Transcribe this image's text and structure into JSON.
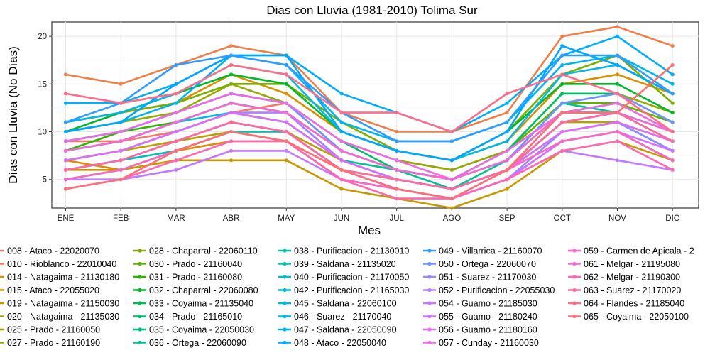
{
  "chart_data": {
    "type": "line",
    "title": "Dias con Lluvia (1981-2010)  Tolima Sur",
    "xlabel": "Mes",
    "ylabel": "Días con Lluvia (No Días)",
    "categories": [
      "ENE",
      "FEB",
      "MAR",
      "ABR",
      "MAY",
      "JUN",
      "JUL",
      "AGO",
      "SEP",
      "OCT",
      "NOV",
      "DIC"
    ],
    "y_ticks": [
      5,
      10,
      15,
      20
    ],
    "ylim": [
      2,
      21.5
    ],
    "grid": true,
    "legend_position": "bottom",
    "series": [
      {
        "name": "008 - Ataco - 22020070",
        "color": "#F8766D",
        "values": [
          9,
          9,
          10,
          12,
          13,
          9,
          7,
          6,
          8,
          12,
          13,
          10
        ]
      },
      {
        "name": "010 - Rioblanco - 22010040",
        "color": "#EF7F49",
        "values": [
          16,
          15,
          17,
          19,
          18,
          12,
          10,
          10,
          12,
          20,
          21,
          19
        ]
      },
      {
        "name": "014 - Natagaima - 21130180",
        "color": "#E58700",
        "values": [
          7,
          6,
          8,
          9,
          9,
          6,
          4,
          3,
          5,
          9,
          10,
          7
        ]
      },
      {
        "name": "015 - Ataco - 22055020",
        "color": "#D89000",
        "values": [
          11,
          12,
          13,
          16,
          14,
          10,
          8,
          7,
          9,
          15,
          16,
          14
        ]
      },
      {
        "name": "019 - Natagaima - 21150030",
        "color": "#C99800",
        "values": [
          6,
          6,
          7,
          7,
          7,
          4,
          3,
          2,
          4,
          8,
          9,
          7
        ]
      },
      {
        "name": "020 - Natagaima - 21135030",
        "color": "#B99F00",
        "values": [
          7,
          8,
          9,
          10,
          10,
          7,
          5,
          4,
          6,
          11,
          11,
          9
        ]
      },
      {
        "name": "025 - Prado - 21160050",
        "color": "#A8A400",
        "values": [
          8,
          9,
          11,
          13,
          12,
          8,
          6,
          5,
          7,
          12,
          12,
          10
        ]
      },
      {
        "name": "027 - Prado - 21160190",
        "color": "#93AA00",
        "values": [
          10,
          11,
          12,
          15,
          13,
          9,
          7,
          6,
          8,
          14,
          14,
          12
        ]
      },
      {
        "name": "028 - Chaparral - 22060110",
        "color": "#7CAE00",
        "values": [
          11,
          12,
          13,
          15,
          15,
          11,
          8,
          7,
          10,
          16,
          18,
          13
        ]
      },
      {
        "name": "030 - Prado - 21160040",
        "color": "#5EB300",
        "values": [
          9,
          10,
          12,
          14,
          13,
          8,
          6,
          5,
          8,
          13,
          13,
          11
        ]
      },
      {
        "name": "031 - Prado - 21160080",
        "color": "#2CB600",
        "values": [
          8,
          10,
          11,
          13,
          12,
          8,
          6,
          5,
          7,
          12,
          13,
          10
        ]
      },
      {
        "name": "032 - Chaparral - 22060080",
        "color": "#00B92A",
        "values": [
          10,
          12,
          14,
          16,
          15,
          10,
          8,
          7,
          10,
          15,
          15,
          12
        ]
      },
      {
        "name": "033 - Coyaima - 21135040",
        "color": "#00BB4E",
        "values": [
          7,
          8,
          10,
          12,
          11,
          7,
          5,
          4,
          6,
          11,
          12,
          9
        ]
      },
      {
        "name": "034 - Prado - 21165010",
        "color": "#00BD68",
        "values": [
          9,
          10,
          12,
          14,
          13,
          9,
          6,
          5,
          8,
          14,
          14,
          11
        ]
      },
      {
        "name": "035 - Coyaima - 22050030",
        "color": "#00BE7F",
        "values": [
          6,
          7,
          9,
          11,
          10,
          6,
          5,
          4,
          6,
          10,
          11,
          8
        ]
      },
      {
        "name": "036 - Ortega - 22060090",
        "color": "#00C094",
        "values": [
          8,
          9,
          11,
          13,
          12,
          7,
          6,
          4,
          7,
          13,
          12,
          10
        ]
      },
      {
        "name": "038 - Purificacion - 21130010",
        "color": "#00C1A7",
        "values": [
          5,
          6,
          8,
          10,
          9,
          5,
          4,
          3,
          5,
          9,
          10,
          7
        ]
      },
      {
        "name": "039 - Saldana - 21135020",
        "color": "#00C0B8",
        "values": [
          6,
          7,
          8,
          10,
          10,
          6,
          5,
          4,
          6,
          10,
          11,
          8
        ]
      },
      {
        "name": "040 - Purificacion - 21170050",
        "color": "#00BFC7",
        "values": [
          7,
          8,
          10,
          12,
          11,
          7,
          5,
          4,
          6,
          11,
          12,
          9
        ]
      },
      {
        "name": "042 - Purificacion - 21165030",
        "color": "#00BCD6",
        "values": [
          8,
          9,
          11,
          12,
          11,
          7,
          5,
          4,
          6,
          12,
          12,
          10
        ]
      },
      {
        "name": "045 - Saldana - 22060100",
        "color": "#00B8E3",
        "values": [
          11,
          12,
          14,
          17,
          16,
          10,
          8,
          7,
          9,
          16,
          17,
          14
        ]
      },
      {
        "name": "046 - Suarez - 21170040",
        "color": "#00B4EF",
        "values": [
          10,
          11,
          13,
          18,
          17,
          11,
          9,
          9,
          11,
          17,
          18,
          15
        ]
      },
      {
        "name": "047 - Saldana - 22050090",
        "color": "#00AEFA",
        "values": [
          13,
          13,
          15,
          18,
          18,
          14,
          12,
          10,
          13,
          18,
          20,
          16
        ]
      },
      {
        "name": "048 - Ataco - 22050040",
        "color": "#00A6FF",
        "values": [
          10,
          11,
          15,
          18,
          18,
          10,
          8,
          7,
          10,
          19,
          17,
          14
        ]
      },
      {
        "name": "049 - Villarrica - 21160070",
        "color": "#2F9DFF",
        "values": [
          11,
          13,
          17,
          18,
          17,
          12,
          9,
          9,
          11,
          18,
          18,
          14
        ]
      },
      {
        "name": "050 - Ortega - 22060070",
        "color": "#6F93FF",
        "values": [
          9,
          10,
          12,
          14,
          13,
          8,
          6,
          5,
          7,
          13,
          14,
          11
        ]
      },
      {
        "name": "051 - Suarez - 21170030",
        "color": "#9489FF",
        "values": [
          6,
          7,
          9,
          11,
          10,
          6,
          4,
          3,
          5,
          10,
          11,
          8
        ]
      },
      {
        "name": "052 - Purificacion - 22055030",
        "color": "#AF7FFF",
        "values": [
          7,
          8,
          10,
          12,
          12,
          7,
          5,
          4,
          6,
          11,
          12,
          9
        ]
      },
      {
        "name": "054 - Guamo - 21185030",
        "color": "#C477FF",
        "values": [
          5,
          5,
          6,
          8,
          8,
          5,
          4,
          3,
          5,
          8,
          7,
          6
        ]
      },
      {
        "name": "055 - Guamo - 21180240",
        "color": "#D570FF",
        "values": [
          6,
          7,
          9,
          11,
          10,
          6,
          4,
          3,
          5,
          9,
          10,
          8
        ]
      },
      {
        "name": "056 - Guamo - 21180160",
        "color": "#E36CF4",
        "values": [
          7,
          8,
          10,
          12,
          11,
          7,
          5,
          4,
          6,
          10,
          11,
          9
        ]
      },
      {
        "name": "057 - Cunday - 21160030",
        "color": "#EE6AE6",
        "values": [
          9,
          10,
          12,
          14,
          13,
          9,
          7,
          5,
          8,
          12,
          13,
          10
        ]
      },
      {
        "name": "059 - Carmen de Apicala - 2",
        "color": "#F767D6",
        "values": [
          8,
          9,
          11,
          13,
          12,
          8,
          6,
          5,
          7,
          12,
          12,
          10
        ]
      },
      {
        "name": "061 - Melgar - 21195080",
        "color": "#FC66C5",
        "values": [
          5,
          6,
          8,
          10,
          9,
          5,
          4,
          3,
          6,
          9,
          10,
          7
        ]
      },
      {
        "name": "062 - Melgar - 21190300",
        "color": "#FF67B2",
        "values": [
          4,
          5,
          7,
          9,
          9,
          5,
          3,
          3,
          5,
          8,
          9,
          6
        ]
      },
      {
        "name": "063 - Suarez - 21170020",
        "color": "#FF699E",
        "values": [
          6,
          7,
          9,
          11,
          10,
          6,
          5,
          4,
          6,
          11,
          12,
          9
        ]
      },
      {
        "name": "064 - Flandes - 21185040",
        "color": "#FF6C89",
        "values": [
          14,
          13,
          14,
          17,
          16,
          12,
          12,
          10,
          14,
          16,
          14,
          10
        ]
      },
      {
        "name": "065 - Coyaima - 22050100",
        "color": "#FC7075",
        "values": [
          4,
          5,
          8,
          10,
          9,
          6,
          4,
          3,
          6,
          12,
          12,
          17
        ]
      }
    ]
  }
}
